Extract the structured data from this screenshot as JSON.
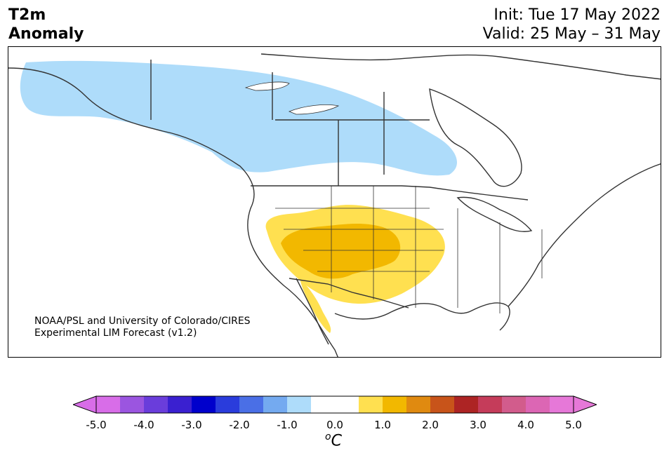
{
  "header": {
    "title_line1": "T2m",
    "title_line2": "Anomaly",
    "init": "Init: Tue 17 May 2022",
    "valid": "Valid: 25 May – 31 May"
  },
  "credit": {
    "line1": "NOAA/PSL and University of Colorado/CIRES",
    "line2": "Experimental LIM Forecast (v1.2)"
  },
  "colorbar": {
    "unit_sup": "o",
    "unit_main": "C",
    "tick_labels": [
      "-5.0",
      "-4.0",
      "-3.0",
      "-2.0",
      "-1.0",
      "0.0",
      "1.0",
      "2.0",
      "3.0",
      "4.0",
      "5.0"
    ],
    "bins": [
      "#d86de8",
      "#9b55e0",
      "#6a3ddb",
      "#3a20d0",
      "#0000cc",
      "#2a3cdc",
      "#4a6fe6",
      "#74aaf0",
      "#aedcfa",
      "#ffffff",
      "#ffffff",
      "#ffe050",
      "#f2b800",
      "#e08a10",
      "#c8541a",
      "#ad2424",
      "#c53c5a",
      "#d25c8c",
      "#dc66b4",
      "#e678d8"
    ],
    "under_color": "#d86de8",
    "over_color": "#e678d8"
  },
  "map": {
    "cold_anomaly_color": "#aedcfa",
    "warm_light_color": "#ffe050",
    "warm_dark_color": "#f2b800",
    "coast_color": "#333333"
  }
}
